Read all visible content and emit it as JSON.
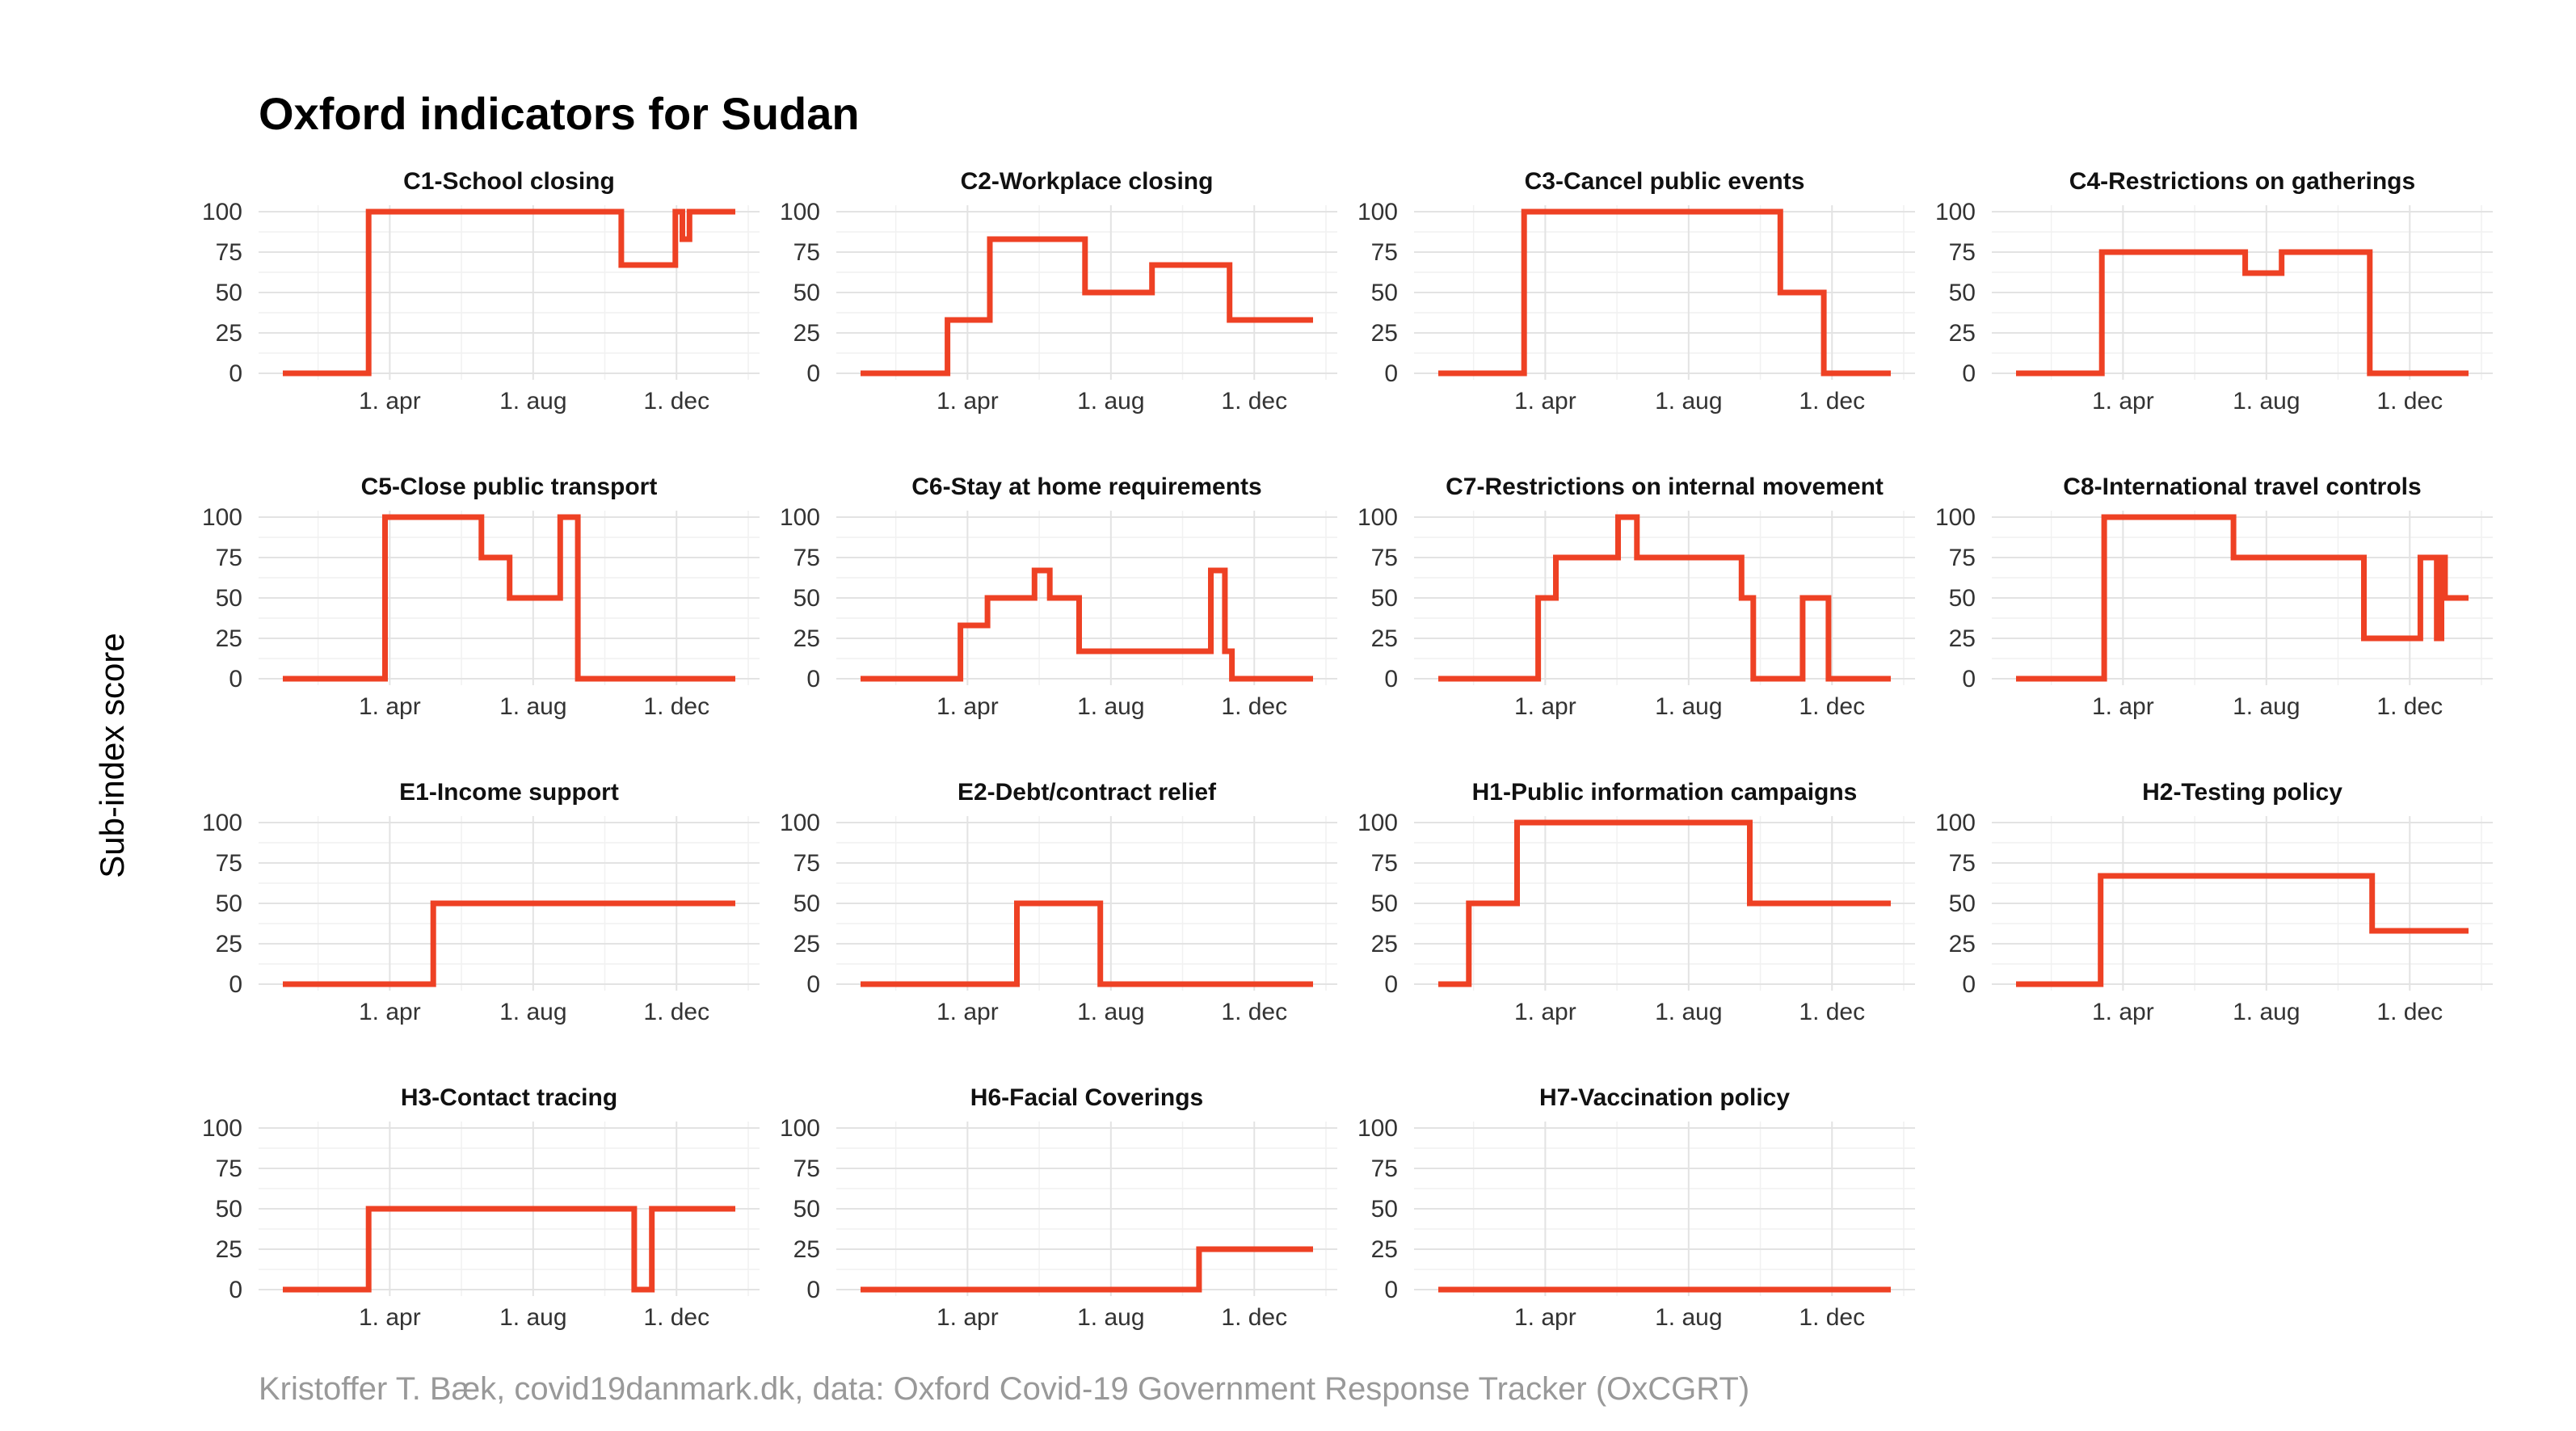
{
  "figure": {
    "title": "Oxford indicators for Sudan",
    "ylabel": "Sub-index score",
    "caption": "Kristoffer T. Bæk, covid19danmark.dk, data: Oxford Covid-19 Government Response Tracker (OxCGRT)",
    "line_color": "#ee4124"
  },
  "chart_data": [
    {
      "type": "line",
      "title": "C1-School closing",
      "ylim": [
        0,
        100
      ],
      "yticks": [
        0,
        25,
        50,
        75,
        100
      ],
      "xlim": [
        "2020-01-01",
        "2021-01-20"
      ],
      "xticks": [
        {
          "date": "2020-04-01",
          "label": "1. apr"
        },
        {
          "date": "2020-08-01",
          "label": "1. aug"
        },
        {
          "date": "2020-12-01",
          "label": "1. dec"
        }
      ],
      "series": [
        {
          "x": [
            "2020-01-01",
            "2020-03-14",
            "2020-03-14",
            "2020-10-15",
            "2020-10-15",
            "2020-11-30",
            "2020-11-30",
            "2020-12-06",
            "2020-12-06",
            "2020-12-12",
            "2020-12-12",
            "2021-01-20"
          ],
          "y": [
            0,
            0,
            100,
            100,
            67,
            67,
            100,
            100,
            83,
            83,
            100,
            100
          ]
        }
      ]
    },
    {
      "type": "line",
      "title": "C2-Workplace closing",
      "ylim": [
        0,
        100
      ],
      "yticks": [
        0,
        25,
        50,
        75,
        100
      ],
      "xlim": [
        "2020-01-01",
        "2021-01-20"
      ],
      "xticks": [
        {
          "date": "2020-04-01",
          "label": "1. apr"
        },
        {
          "date": "2020-08-01",
          "label": "1. aug"
        },
        {
          "date": "2020-12-01",
          "label": "1. dec"
        }
      ],
      "series": [
        {
          "x": [
            "2020-01-01",
            "2020-03-15",
            "2020-03-15",
            "2020-04-20",
            "2020-04-20",
            "2020-07-10",
            "2020-07-10",
            "2020-09-05",
            "2020-09-05",
            "2020-11-10",
            "2020-11-10",
            "2021-01-20"
          ],
          "y": [
            0,
            0,
            33,
            33,
            83,
            83,
            50,
            50,
            67,
            67,
            33,
            33
          ]
        }
      ]
    },
    {
      "type": "line",
      "title": "C3-Cancel public events",
      "ylim": [
        0,
        100
      ],
      "yticks": [
        0,
        25,
        50,
        75,
        100
      ],
      "xlim": [
        "2020-01-01",
        "2021-01-20"
      ],
      "xticks": [
        {
          "date": "2020-04-01",
          "label": "1. apr"
        },
        {
          "date": "2020-08-01",
          "label": "1. aug"
        },
        {
          "date": "2020-12-01",
          "label": "1. dec"
        }
      ],
      "series": [
        {
          "x": [
            "2020-01-01",
            "2020-03-14",
            "2020-03-14",
            "2020-10-18",
            "2020-10-18",
            "2020-11-24",
            "2020-11-24",
            "2021-01-20"
          ],
          "y": [
            0,
            0,
            100,
            100,
            50,
            50,
            0,
            0
          ]
        }
      ]
    },
    {
      "type": "line",
      "title": "C4-Restrictions on gatherings",
      "ylim": [
        0,
        100
      ],
      "yticks": [
        0,
        25,
        50,
        75,
        100
      ],
      "xlim": [
        "2020-01-01",
        "2021-01-20"
      ],
      "xticks": [
        {
          "date": "2020-04-01",
          "label": "1. apr"
        },
        {
          "date": "2020-08-01",
          "label": "1. aug"
        },
        {
          "date": "2020-12-01",
          "label": "1. dec"
        }
      ],
      "series": [
        {
          "x": [
            "2020-01-01",
            "2020-03-14",
            "2020-03-14",
            "2020-07-14",
            "2020-07-14",
            "2020-08-14",
            "2020-08-14",
            "2020-10-28",
            "2020-10-28",
            "2021-01-20"
          ],
          "y": [
            0,
            0,
            75,
            75,
            62,
            62,
            75,
            75,
            0,
            0
          ]
        }
      ]
    },
    {
      "type": "line",
      "title": "C5-Close public transport",
      "ylim": [
        0,
        100
      ],
      "yticks": [
        0,
        25,
        50,
        75,
        100
      ],
      "xlim": [
        "2020-01-01",
        "2021-01-20"
      ],
      "xticks": [
        {
          "date": "2020-04-01",
          "label": "1. apr"
        },
        {
          "date": "2020-08-01",
          "label": "1. aug"
        },
        {
          "date": "2020-12-01",
          "label": "1. dec"
        }
      ],
      "series": [
        {
          "x": [
            "2020-01-01",
            "2020-03-28",
            "2020-03-28",
            "2020-06-18",
            "2020-06-18",
            "2020-07-12",
            "2020-07-12",
            "2020-08-24",
            "2020-08-24",
            "2020-09-08",
            "2020-09-08",
            "2021-01-20"
          ],
          "y": [
            0,
            0,
            100,
            100,
            75,
            75,
            50,
            50,
            100,
            100,
            0,
            0
          ]
        }
      ]
    },
    {
      "type": "line",
      "title": "C6-Stay at home requirements",
      "ylim": [
        0,
        100
      ],
      "yticks": [
        0,
        25,
        50,
        75,
        100
      ],
      "xlim": [
        "2020-01-01",
        "2021-01-20"
      ],
      "xticks": [
        {
          "date": "2020-04-01",
          "label": "1. apr"
        },
        {
          "date": "2020-08-01",
          "label": "1. aug"
        },
        {
          "date": "2020-12-01",
          "label": "1. dec"
        }
      ],
      "series": [
        {
          "x": [
            "2020-01-01",
            "2020-03-26",
            "2020-03-26",
            "2020-04-18",
            "2020-04-18",
            "2020-05-28",
            "2020-05-28",
            "2020-06-10",
            "2020-06-10",
            "2020-07-05",
            "2020-07-05",
            "2020-10-25",
            "2020-10-25",
            "2020-11-06",
            "2020-11-06",
            "2020-11-12",
            "2020-11-12",
            "2021-01-20"
          ],
          "y": [
            0,
            0,
            33,
            33,
            50,
            50,
            67,
            67,
            50,
            50,
            17,
            17,
            67,
            67,
            17,
            17,
            0,
            0
          ]
        }
      ]
    },
    {
      "type": "line",
      "title": "C7-Restrictions on internal movement",
      "ylim": [
        0,
        100
      ],
      "yticks": [
        0,
        25,
        50,
        75,
        100
      ],
      "xlim": [
        "2020-01-01",
        "2021-01-20"
      ],
      "xticks": [
        {
          "date": "2020-04-01",
          "label": "1. apr"
        },
        {
          "date": "2020-08-01",
          "label": "1. aug"
        },
        {
          "date": "2020-12-01",
          "label": "1. dec"
        }
      ],
      "series": [
        {
          "x": [
            "2020-01-01",
            "2020-03-26",
            "2020-03-26",
            "2020-04-10",
            "2020-04-10",
            "2020-06-02",
            "2020-06-02",
            "2020-06-18",
            "2020-06-18",
            "2020-09-15",
            "2020-09-15",
            "2020-09-25",
            "2020-09-25",
            "2020-11-06",
            "2020-11-06",
            "2020-11-28",
            "2020-11-28",
            "2021-01-20"
          ],
          "y": [
            0,
            0,
            50,
            50,
            75,
            75,
            100,
            100,
            75,
            75,
            50,
            50,
            0,
            0,
            50,
            50,
            0,
            0
          ]
        }
      ]
    },
    {
      "type": "line",
      "title": "C8-International travel controls",
      "ylim": [
        0,
        100
      ],
      "yticks": [
        0,
        25,
        50,
        75,
        100
      ],
      "xlim": [
        "2020-01-01",
        "2021-01-20"
      ],
      "xticks": [
        {
          "date": "2020-04-01",
          "label": "1. apr"
        },
        {
          "date": "2020-08-01",
          "label": "1. aug"
        },
        {
          "date": "2020-12-01",
          "label": "1. dec"
        }
      ],
      "series": [
        {
          "x": [
            "2020-01-01",
            "2020-03-16",
            "2020-03-16",
            "2020-07-04",
            "2020-07-04",
            "2020-10-23",
            "2020-10-23",
            "2020-12-10",
            "2020-12-10",
            "2020-12-24",
            "2020-12-24",
            "2020-12-28",
            "2020-12-28",
            "2020-12-31",
            "2020-12-31",
            "2021-01-04",
            "2021-01-04",
            "2021-01-20"
          ],
          "y": [
            0,
            0,
            100,
            100,
            75,
            75,
            25,
            25,
            75,
            75,
            25,
            25,
            75,
            75,
            50,
            50,
            50,
            50
          ]
        }
      ]
    },
    {
      "type": "line",
      "title": "E1-Income support",
      "ylim": [
        0,
        100
      ],
      "yticks": [
        0,
        25,
        50,
        75,
        100
      ],
      "xlim": [
        "2020-01-01",
        "2021-01-20"
      ],
      "xticks": [
        {
          "date": "2020-04-01",
          "label": "1. apr"
        },
        {
          "date": "2020-08-01",
          "label": "1. aug"
        },
        {
          "date": "2020-12-01",
          "label": "1. dec"
        }
      ],
      "series": [
        {
          "x": [
            "2020-01-01",
            "2020-05-08",
            "2020-05-08",
            "2021-01-20"
          ],
          "y": [
            0,
            0,
            50,
            50
          ]
        }
      ]
    },
    {
      "type": "line",
      "title": "E2-Debt/contract relief",
      "ylim": [
        0,
        100
      ],
      "yticks": [
        0,
        25,
        50,
        75,
        100
      ],
      "xlim": [
        "2020-01-01",
        "2021-01-20"
      ],
      "xticks": [
        {
          "date": "2020-04-01",
          "label": "1. apr"
        },
        {
          "date": "2020-08-01",
          "label": "1. aug"
        },
        {
          "date": "2020-12-01",
          "label": "1. dec"
        }
      ],
      "series": [
        {
          "x": [
            "2020-01-01",
            "2020-05-13",
            "2020-05-13",
            "2020-07-23",
            "2020-07-23",
            "2021-01-20"
          ],
          "y": [
            0,
            0,
            50,
            50,
            0,
            0
          ]
        }
      ]
    },
    {
      "type": "line",
      "title": "H1-Public information campaigns",
      "ylim": [
        0,
        100
      ],
      "yticks": [
        0,
        25,
        50,
        75,
        100
      ],
      "xlim": [
        "2020-01-01",
        "2021-01-20"
      ],
      "xticks": [
        {
          "date": "2020-04-01",
          "label": "1. apr"
        },
        {
          "date": "2020-08-01",
          "label": "1. aug"
        },
        {
          "date": "2020-12-01",
          "label": "1. dec"
        }
      ],
      "series": [
        {
          "x": [
            "2020-01-01",
            "2020-01-27",
            "2020-01-27",
            "2020-03-08",
            "2020-03-08",
            "2020-09-22",
            "2020-09-22",
            "2021-01-20"
          ],
          "y": [
            0,
            0,
            50,
            50,
            100,
            100,
            50,
            50
          ]
        }
      ]
    },
    {
      "type": "line",
      "title": "H2-Testing policy",
      "ylim": [
        0,
        100
      ],
      "yticks": [
        0,
        25,
        50,
        75,
        100
      ],
      "xlim": [
        "2020-01-01",
        "2021-01-20"
      ],
      "xticks": [
        {
          "date": "2020-04-01",
          "label": "1. apr"
        },
        {
          "date": "2020-08-01",
          "label": "1. aug"
        },
        {
          "date": "2020-12-01",
          "label": "1. dec"
        }
      ],
      "series": [
        {
          "x": [
            "2020-01-01",
            "2020-03-13",
            "2020-03-13",
            "2020-10-30",
            "2020-10-30",
            "2021-01-20"
          ],
          "y": [
            0,
            0,
            67,
            67,
            33,
            33
          ]
        }
      ]
    },
    {
      "type": "line",
      "title": "H3-Contact tracing",
      "ylim": [
        0,
        100
      ],
      "yticks": [
        0,
        25,
        50,
        75,
        100
      ],
      "xlim": [
        "2020-01-01",
        "2021-01-20"
      ],
      "xticks": [
        {
          "date": "2020-04-01",
          "label": "1. apr"
        },
        {
          "date": "2020-08-01",
          "label": "1. aug"
        },
        {
          "date": "2020-12-01",
          "label": "1. dec"
        }
      ],
      "series": [
        {
          "x": [
            "2020-01-01",
            "2020-03-14",
            "2020-03-14",
            "2020-10-26",
            "2020-10-26",
            "2020-11-10",
            "2020-11-10",
            "2021-01-20"
          ],
          "y": [
            0,
            0,
            50,
            50,
            0,
            0,
            50,
            50
          ]
        }
      ]
    },
    {
      "type": "line",
      "title": "H6-Facial Coverings",
      "ylim": [
        0,
        100
      ],
      "yticks": [
        0,
        25,
        50,
        75,
        100
      ],
      "xlim": [
        "2020-01-01",
        "2021-01-20"
      ],
      "xticks": [
        {
          "date": "2020-04-01",
          "label": "1. apr"
        },
        {
          "date": "2020-08-01",
          "label": "1. aug"
        },
        {
          "date": "2020-12-01",
          "label": "1. dec"
        }
      ],
      "series": [
        {
          "x": [
            "2020-01-01",
            "2020-10-15",
            "2020-10-15",
            "2021-01-20"
          ],
          "y": [
            0,
            0,
            25,
            25
          ]
        }
      ]
    },
    {
      "type": "line",
      "title": "H7-Vaccination policy",
      "ylim": [
        0,
        100
      ],
      "yticks": [
        0,
        25,
        50,
        75,
        100
      ],
      "xlim": [
        "2020-01-01",
        "2021-01-20"
      ],
      "xticks": [
        {
          "date": "2020-04-01",
          "label": "1. apr"
        },
        {
          "date": "2020-08-01",
          "label": "1. aug"
        },
        {
          "date": "2020-12-01",
          "label": "1. dec"
        }
      ],
      "series": [
        {
          "x": [
            "2020-01-01",
            "2021-01-20"
          ],
          "y": [
            0,
            0
          ]
        }
      ]
    }
  ]
}
